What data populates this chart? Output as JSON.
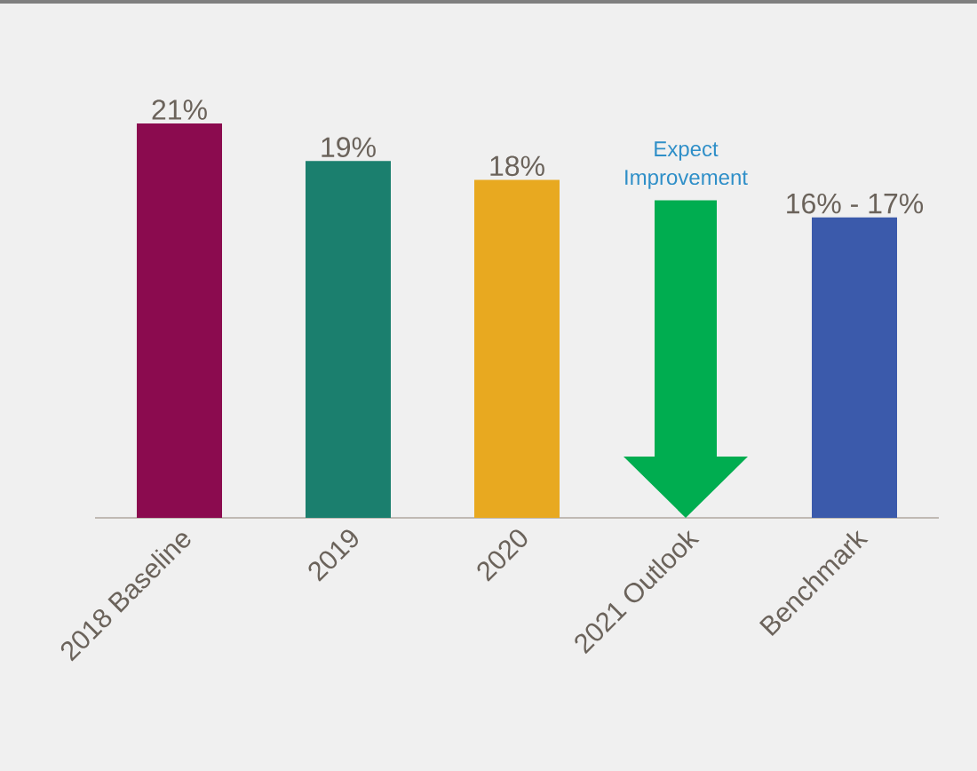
{
  "chart_data": {
    "type": "bar",
    "categories": [
      "2018 Baseline",
      "2019",
      "2020",
      "2021 Outlook",
      "Benchmark"
    ],
    "values": [
      21,
      19,
      18,
      null,
      16
    ],
    "colors": [
      "#8b0b4f",
      "#1b7f6e",
      "#e8a920",
      null,
      "#3b5aab"
    ],
    "value_labels": [
      "21%",
      "19%",
      "18%",
      null,
      "16% - 17%"
    ],
    "annotations": [
      "Expect Improvement"
    ],
    "tick_labels": "x"
  }
}
